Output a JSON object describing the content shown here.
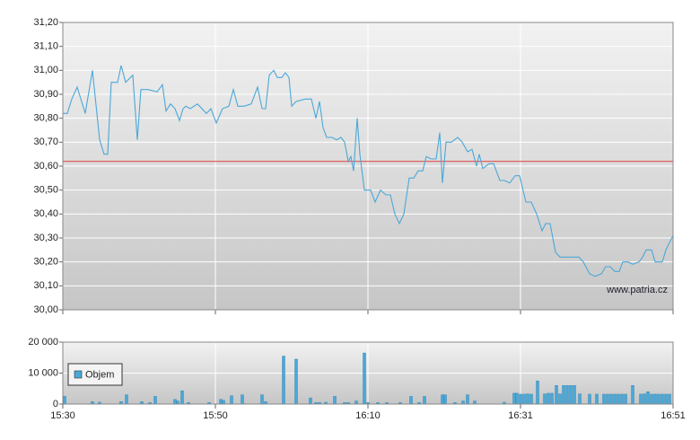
{
  "chart_data": [
    {
      "type": "line",
      "annotation": "www.patria.cz",
      "color": "#4aa8d8",
      "reference_line": {
        "value": 30.62,
        "color": "#e05050"
      },
      "xlim": [
        0,
        680
      ],
      "ylim": [
        30,
        31.2
      ],
      "yticks": [
        {
          "value": 30,
          "label": "30,00"
        },
        {
          "value": 30.1,
          "label": "30,10"
        },
        {
          "value": 30.2,
          "label": "30,20"
        },
        {
          "value": 30.3,
          "label": "30,30"
        },
        {
          "value": 30.4,
          "label": "30,40"
        },
        {
          "value": 30.5,
          "label": "30,50"
        },
        {
          "value": 30.6,
          "label": "30,60"
        },
        {
          "value": 30.7,
          "label": "30,70"
        },
        {
          "value": 30.8,
          "label": "30,80"
        },
        {
          "value": 30.9,
          "label": "30,90"
        },
        {
          "value": 31,
          "label": "31,00"
        },
        {
          "value": 31.1,
          "label": "31,10"
        },
        {
          "value": 31.2,
          "label": "31,20"
        }
      ],
      "x": [
        0,
        5,
        10,
        16,
        25,
        33,
        41,
        46,
        50,
        54,
        61,
        65,
        70,
        78,
        83,
        87,
        95,
        105,
        111,
        115,
        120,
        125,
        130,
        134,
        137,
        142,
        150,
        160,
        165,
        171,
        178,
        185,
        190,
        195,
        202,
        210,
        217,
        222,
        226,
        230,
        235,
        239,
        244,
        248,
        252,
        255,
        260,
        270,
        277,
        282,
        286,
        290,
        294,
        300,
        305,
        310,
        314,
        318,
        321,
        324,
        328,
        331,
        336,
        343,
        348,
        354,
        360,
        365,
        370,
        375,
        380,
        386,
        391,
        396,
        401,
        405,
        410,
        416,
        420,
        423,
        427,
        433,
        440,
        445,
        451,
        456,
        461,
        464,
        468,
        475,
        480,
        487,
        492,
        498,
        504,
        509,
        516,
        522,
        528,
        534,
        538,
        543,
        549,
        554,
        565,
        575,
        580,
        587,
        593,
        600,
        605,
        610,
        615,
        620,
        624,
        630,
        635,
        642,
        646,
        650,
        656,
        660,
        668,
        672,
        680
      ],
      "values": [
        30.82,
        30.82,
        30.88,
        30.93,
        30.82,
        31.0,
        30.71,
        30.65,
        30.65,
        30.95,
        30.95,
        31.02,
        30.95,
        30.98,
        30.71,
        30.92,
        30.92,
        30.91,
        30.94,
        30.83,
        30.86,
        30.84,
        30.79,
        30.84,
        30.85,
        30.84,
        30.86,
        30.82,
        30.84,
        30.78,
        30.84,
        30.85,
        30.92,
        30.85,
        30.85,
        30.86,
        30.93,
        30.84,
        30.84,
        30.98,
        31.0,
        30.97,
        30.97,
        30.99,
        30.97,
        30.85,
        30.87,
        30.88,
        30.88,
        30.8,
        30.87,
        30.76,
        30.72,
        30.72,
        30.71,
        30.72,
        30.7,
        30.62,
        30.64,
        30.58,
        30.8,
        30.65,
        30.5,
        30.5,
        30.45,
        30.5,
        30.48,
        30.48,
        30.4,
        30.36,
        30.4,
        30.55,
        30.55,
        30.58,
        30.58,
        30.64,
        30.63,
        30.63,
        30.74,
        30.53,
        30.7,
        30.7,
        30.72,
        30.7,
        30.66,
        30.67,
        30.6,
        30.65,
        30.59,
        30.61,
        30.61,
        30.54,
        30.54,
        30.53,
        30.56,
        30.56,
        30.45,
        30.45,
        30.4,
        30.33,
        30.36,
        30.36,
        30.24,
        30.22,
        30.22,
        30.22,
        30.2,
        30.15,
        30.14,
        30.15,
        30.18,
        30.18,
        30.16,
        30.16,
        30.2,
        30.2,
        30.19,
        30.2,
        30.22,
        30.25,
        30.25,
        30.2,
        30.2,
        30.25,
        30.31
      ]
    },
    {
      "type": "bar",
      "legend": "left",
      "xlim": [
        0,
        680
      ],
      "ylim": [
        0,
        20000
      ],
      "xticks": [
        {
          "value": 0,
          "label": "15:30"
        },
        {
          "value": 170,
          "label": "15:50"
        },
        {
          "value": 340,
          "label": "16:10"
        },
        {
          "value": 510,
          "label": "16:31"
        },
        {
          "value": 680,
          "label": "16:51"
        }
      ],
      "yticks": [
        0,
        {
          "value": 10000,
          "label": "10 000"
        },
        {
          "value": 20000,
          "label": "20 000"
        }
      ],
      "x": [
        2,
        33,
        41,
        65,
        71,
        88,
        97,
        103,
        125,
        128,
        133,
        140,
        163,
        176,
        179,
        188,
        200,
        222,
        226,
        246,
        260,
        276,
        282,
        286,
        293,
        303,
        314,
        318,
        327,
        336,
        340,
        351,
        361,
        376,
        388,
        397,
        403,
        423,
        426,
        437,
        446,
        451,
        459,
        492,
        503,
        506,
        510,
        514,
        518,
        522,
        529,
        537,
        541,
        545,
        550,
        554,
        558,
        562,
        566,
        570,
        576,
        587,
        595,
        603,
        607,
        611,
        615,
        619,
        623,
        627,
        635,
        644,
        648,
        652,
        656,
        660,
        664,
        668,
        672,
        676
      ],
      "series": [
        {
          "name": "Objem",
          "color": "#4aa8d8",
          "values": [
            2500,
            800,
            600,
            800,
            3000,
            800,
            500,
            2500,
            1500,
            1000,
            4300,
            500,
            500,
            1500,
            1200,
            2700,
            3000,
            3000,
            800,
            15500,
            14500,
            2000,
            500,
            500,
            600,
            2500,
            500,
            500,
            1000,
            16500,
            500,
            500,
            500,
            500,
            2500,
            500,
            2500,
            3000,
            3000,
            500,
            1000,
            3000,
            1000,
            600,
            3500,
            3500,
            3200,
            3200,
            3300,
            3200,
            7500,
            3300,
            3500,
            3500,
            6000,
            3300,
            6000,
            6000,
            6000,
            6000,
            3300,
            3200,
            3200,
            3200,
            3200,
            3200,
            3200,
            3200,
            3200,
            3200,
            6000,
            3200,
            3300,
            4000,
            3200,
            3200,
            3200,
            3200,
            3200,
            3200
          ]
        }
      ]
    }
  ]
}
